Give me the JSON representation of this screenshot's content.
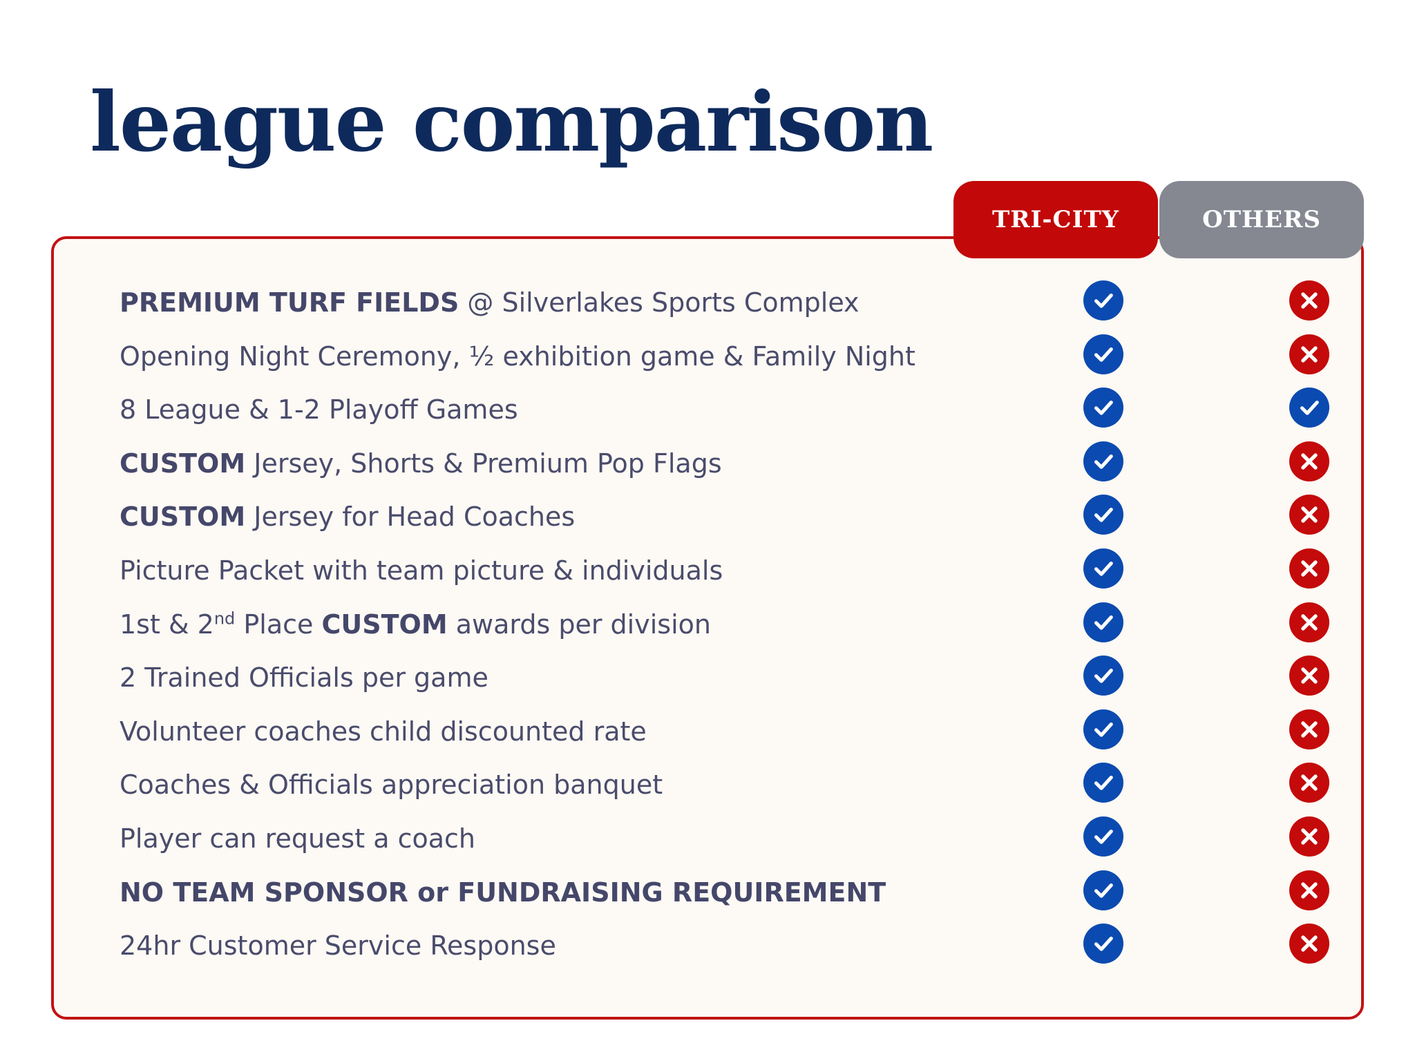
{
  "title": "league comparison",
  "columns": [
    {
      "label": "TRI-CITY",
      "color": "#c20808"
    },
    {
      "label": "OTHERS",
      "color": "#858891"
    }
  ],
  "colors": {
    "check": "#0b4ab0",
    "cross": "#c40a0a",
    "title": "#0e2a5c",
    "border": "#c11212"
  },
  "rows": [
    {
      "bold": "PREMIUM TURF FIELDS",
      "text": " @ Silverlakes Sports Complex",
      "tri": "check",
      "others": "cross"
    },
    {
      "text": "Opening Night Ceremony, ½ exhibition game & Family Night",
      "tri": "check",
      "others": "cross"
    },
    {
      "text": "8 League & 1-2 Playoff Games",
      "tri": "check",
      "others": "check"
    },
    {
      "bold": "CUSTOM",
      "text": " Jersey, Shorts & Premium Pop Flags",
      "tri": "check",
      "others": "cross"
    },
    {
      "bold": "CUSTOM",
      "text": " Jersey for Head Coaches",
      "tri": "check",
      "others": "cross"
    },
    {
      "text": "Picture Packet with team picture & individuals",
      "tri": "check",
      "others": "cross"
    },
    {
      "pre": "1st & 2",
      "sup": "nd",
      "mid": " Place ",
      "bold": "CUSTOM",
      "text": " awards per division",
      "tri": "check",
      "others": "cross"
    },
    {
      "text": "2 Trained Officials per game",
      "tri": "check",
      "others": "cross"
    },
    {
      "text": "Volunteer coaches child discounted rate",
      "tri": "check",
      "others": "cross"
    },
    {
      "text": "Coaches & Officials appreciation banquet",
      "tri": "check",
      "others": "cross"
    },
    {
      "text": "Player can request a coach",
      "tri": "check",
      "others": "cross"
    },
    {
      "bold": "NO TEAM SPONSOR or FUNDRAISING REQUIREMENT",
      "text": "",
      "tri": "check",
      "others": "cross"
    },
    {
      "text": "24hr Customer Service Response",
      "tri": "check",
      "others": "cross"
    }
  ]
}
